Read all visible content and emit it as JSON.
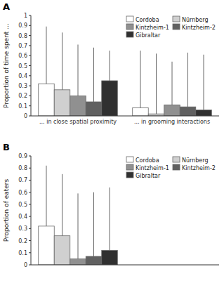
{
  "chart_data": [
    {
      "type": "bar",
      "ylabel": "Proportion of time spent ...",
      "annotations": [
        "A"
      ],
      "categories": [
        "... in close spatial proximity",
        "... in grooming interactions"
      ],
      "series": [
        {
          "name": "Cordoba",
          "color": "#ffffff",
          "values": [
            0.32,
            0.08
          ],
          "errors_up": [
            0.57,
            0.57
          ]
        },
        {
          "name": "Nürnberg",
          "color": "#d0d0d0",
          "values": [
            0.26,
            0.02
          ],
          "errors_up": [
            0.57,
            0.6
          ]
        },
        {
          "name": "Kintzheim-1",
          "color": "#909090",
          "values": [
            0.2,
            0.11
          ],
          "errors_up": [
            0.51,
            0.43
          ]
        },
        {
          "name": "Kintzheim-2",
          "color": "#606060",
          "values": [
            0.14,
            0.09
          ],
          "errors_up": [
            0.54,
            0.54
          ]
        },
        {
          "name": "Gibraltar",
          "color": "#303030",
          "values": [
            0.35,
            0.06
          ],
          "errors_up": [
            0.3,
            0.55
          ]
        }
      ],
      "ylim": [
        0,
        1.0
      ],
      "yticks": [
        0,
        0.1,
        0.2,
        0.3,
        0.4,
        0.5,
        0.6,
        0.7,
        0.8,
        0.9,
        1
      ],
      "legend": "upper right",
      "grid": false
    },
    {
      "type": "bar",
      "ylabel": "Proportion of eaters",
      "annotations": [
        "B"
      ],
      "categories": [
        null
      ],
      "series": [
        {
          "name": "Cordoba",
          "color": "#ffffff",
          "values": [
            0.32
          ],
          "errors_up": [
            0.5
          ]
        },
        {
          "name": "Nürnberg",
          "color": "#d0d0d0",
          "values": [
            0.24
          ],
          "errors_up": [
            0.51
          ]
        },
        {
          "name": "Kintzheim-1",
          "color": "#909090",
          "values": [
            0.05
          ],
          "errors_up": [
            0.54
          ]
        },
        {
          "name": "Kintzheim-2",
          "color": "#606060",
          "values": [
            0.07
          ],
          "errors_up": [
            0.53
          ]
        },
        {
          "name": "Gibraltar",
          "color": "#303030",
          "values": [
            0.12
          ],
          "errors_up": [
            0.52
          ]
        }
      ],
      "ylim": [
        0,
        0.9
      ],
      "yticks": [
        0,
        0.1,
        0.2,
        0.3,
        0.4,
        0.5,
        0.6,
        0.7,
        0.8,
        0.9
      ],
      "legend": "upper right",
      "tick_labels": "y",
      "grid": false
    }
  ]
}
